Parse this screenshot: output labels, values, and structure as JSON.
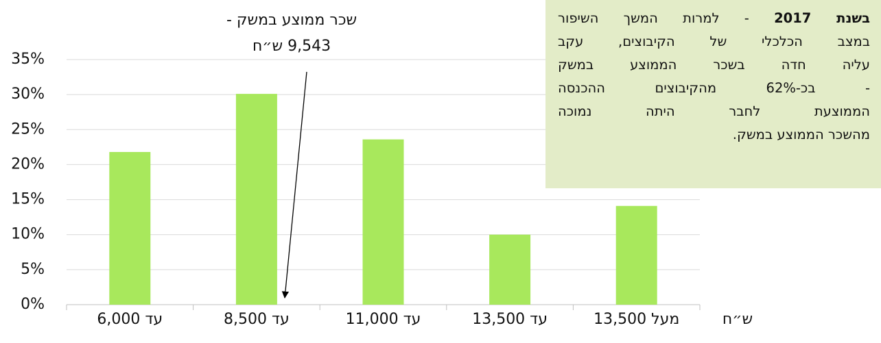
{
  "chart_data": {
    "type": "bar",
    "categories": [
      "עד 6,000",
      "עד 8,500",
      "עד 11,000",
      "עד 13,500",
      "מעל 13,500"
    ],
    "values": [
      21.8,
      30.1,
      23.6,
      10,
      14.1
    ],
    "color": "#a8e85c",
    "ylim": [
      0,
      35
    ],
    "yticks": [
      {
        "value": 0,
        "label": "0%"
      },
      {
        "value": 5,
        "label": "5%"
      },
      {
        "value": 10,
        "label": "10%"
      },
      {
        "value": 15,
        "label": "15%"
      },
      {
        "value": 20,
        "label": "20%"
      },
      {
        "value": 25,
        "label": "25%"
      },
      {
        "value": 30,
        "label": "30%"
      },
      {
        "value": 35,
        "label": "35%"
      }
    ],
    "grid": true,
    "x_unit": "ש״ח",
    "annotation": {
      "lines": [
        "שכר ממוצע במשק -",
        "9,543 ש״ח"
      ]
    },
    "textbox": {
      "bold": "בשנת 2017",
      "lines": [
        " - למרות המשך השיפור",
        "במצב הכלכלי של הקיבוצים, עקב",
        "עליה חדה בשכר הממוצע במשק",
        "- בכ-62% מהקיבוצים ההכנסה",
        "הממוצעת לחבר היתה נמוכה",
        "מהשכר הממוצע במשק."
      ]
    }
  }
}
